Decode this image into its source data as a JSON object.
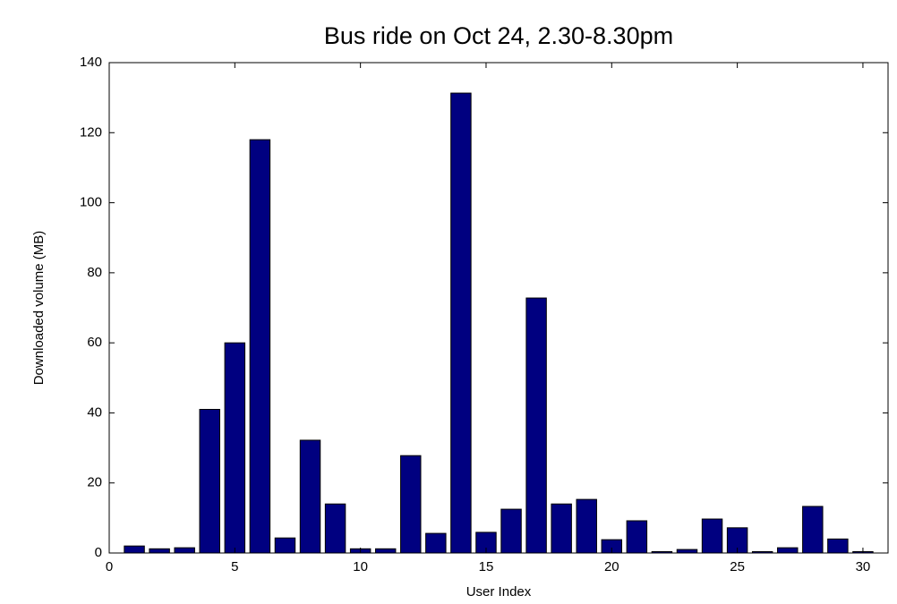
{
  "chart_data": {
    "type": "bar",
    "title": "Bus ride on Oct 24, 2.30-8.30pm",
    "x_label": "User Index",
    "y_label": "Downloaded volume (MB)",
    "x": [
      1,
      2,
      3,
      4,
      5,
      6,
      7,
      8,
      9,
      10,
      11,
      12,
      13,
      14,
      15,
      16,
      17,
      18,
      19,
      20,
      21,
      22,
      23,
      24,
      25,
      26,
      27,
      28,
      29,
      30
    ],
    "values": [
      2,
      1.2,
      1.5,
      41,
      60,
      118,
      4.3,
      32.2,
      14,
      1.2,
      1.2,
      27.8,
      5.6,
      131.3,
      5.9,
      12.5,
      72.8,
      14,
      15.3,
      3.8,
      9.2,
      0.4,
      1,
      9.7,
      7.2,
      0.4,
      1.5,
      13.3,
      4,
      0.4
    ],
    "color": "#000080",
    "xlim": [
      0,
      31
    ],
    "xticks": [
      0,
      5,
      10,
      15,
      20,
      25,
      30
    ],
    "ylim": [
      0,
      140
    ],
    "yticks": [
      0,
      20,
      40,
      60,
      80,
      100,
      120,
      140
    ]
  }
}
